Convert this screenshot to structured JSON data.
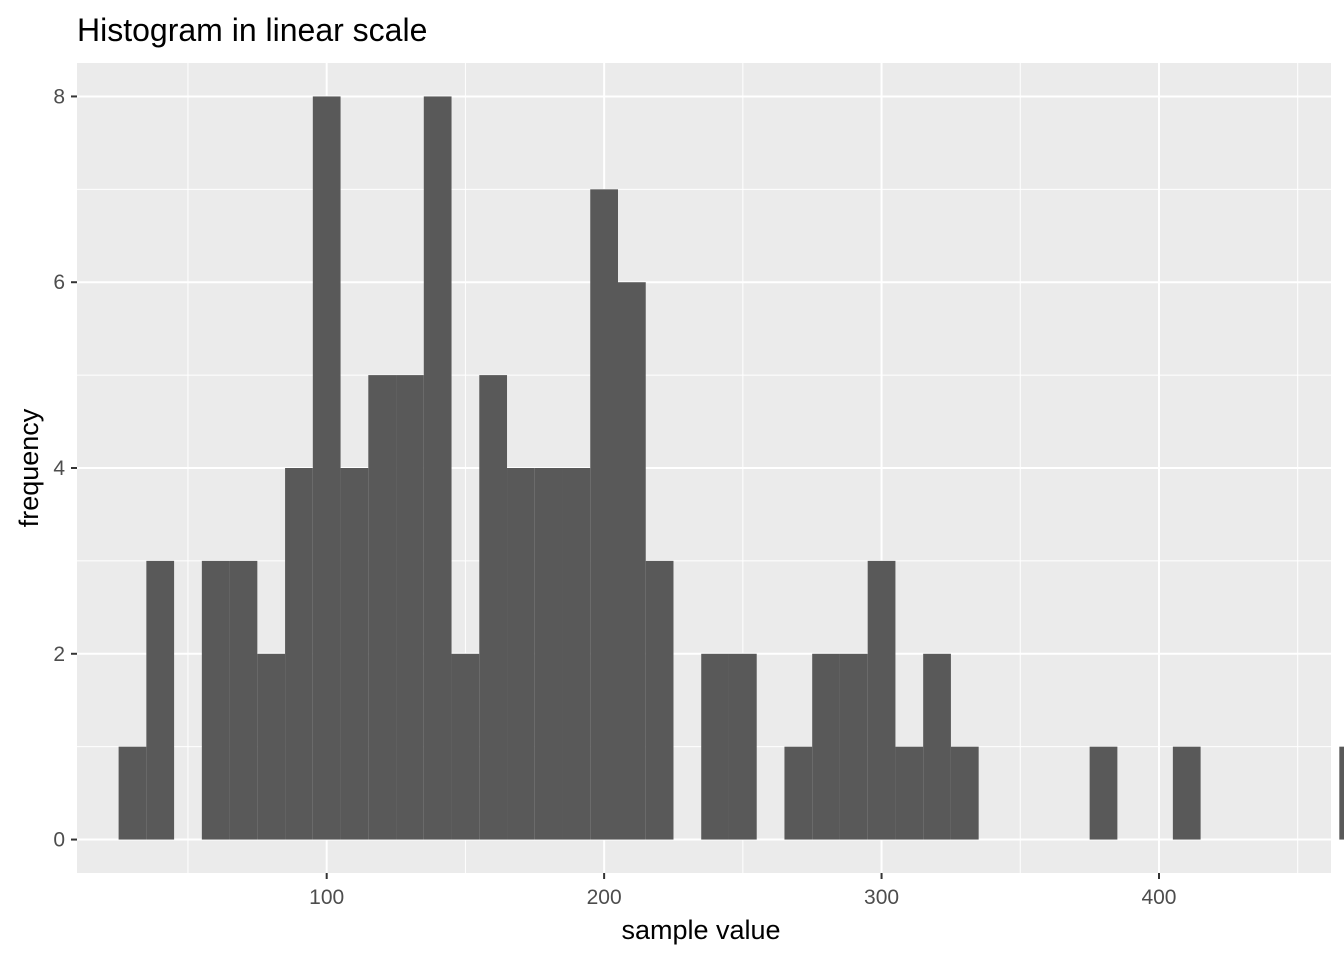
{
  "chart_data": {
    "type": "bar",
    "title": "Histogram in linear scale",
    "xlabel": "sample value",
    "ylabel": "frequency",
    "xlim": [
      10,
      462
    ],
    "ylim": [
      -0.36,
      8.36
    ],
    "binwidth": 10,
    "x_ticks": [
      100,
      200,
      300,
      400
    ],
    "x_tick_labels": [
      "100",
      "200",
      "300",
      "400"
    ],
    "y_ticks": [
      0,
      2,
      4,
      6,
      8
    ],
    "y_tick_labels": [
      "0",
      "2",
      "4",
      "6",
      "8"
    ],
    "bins": [
      {
        "x0": 25,
        "x1": 35,
        "count": 1
      },
      {
        "x0": 35,
        "x1": 45,
        "count": 3
      },
      {
        "x0": 55,
        "x1": 65,
        "count": 3
      },
      {
        "x0": 65,
        "x1": 75,
        "count": 3
      },
      {
        "x0": 75,
        "x1": 85,
        "count": 2
      },
      {
        "x0": 85,
        "x1": 95,
        "count": 4
      },
      {
        "x0": 95,
        "x1": 105,
        "count": 8
      },
      {
        "x0": 105,
        "x1": 115,
        "count": 4
      },
      {
        "x0": 115,
        "x1": 125,
        "count": 5
      },
      {
        "x0": 125,
        "x1": 135,
        "count": 5
      },
      {
        "x0": 135,
        "x1": 145,
        "count": 8
      },
      {
        "x0": 145,
        "x1": 155,
        "count": 2
      },
      {
        "x0": 155,
        "x1": 165,
        "count": 5
      },
      {
        "x0": 165,
        "x1": 175,
        "count": 4
      },
      {
        "x0": 175,
        "x1": 185,
        "count": 4
      },
      {
        "x0": 185,
        "x1": 195,
        "count": 4
      },
      {
        "x0": 195,
        "x1": 205,
        "count": 7
      },
      {
        "x0": 205,
        "x1": 215,
        "count": 6
      },
      {
        "x0": 215,
        "x1": 225,
        "count": 3
      },
      {
        "x0": 235,
        "x1": 245,
        "count": 2
      },
      {
        "x0": 245,
        "x1": 255,
        "count": 2
      },
      {
        "x0": 265,
        "x1": 275,
        "count": 1
      },
      {
        "x0": 275,
        "x1": 285,
        "count": 2
      },
      {
        "x0": 285,
        "x1": 295,
        "count": 2
      },
      {
        "x0": 295,
        "x1": 305,
        "count": 3
      },
      {
        "x0": 305,
        "x1": 315,
        "count": 1
      },
      {
        "x0": 315,
        "x1": 325,
        "count": 2
      },
      {
        "x0": 325,
        "x1": 335,
        "count": 1
      },
      {
        "x0": 375,
        "x1": 385,
        "count": 1
      },
      {
        "x0": 405,
        "x1": 415,
        "count": 1
      },
      {
        "x0": 465,
        "x1": 475,
        "count": 1
      }
    ],
    "grid": true,
    "colors": {
      "panel_background": "#ebebeb",
      "grid_line": "#ffffff",
      "bar_fill": "#595959",
      "tick_text": "#4d4d4d",
      "title_text": "#000000"
    }
  }
}
